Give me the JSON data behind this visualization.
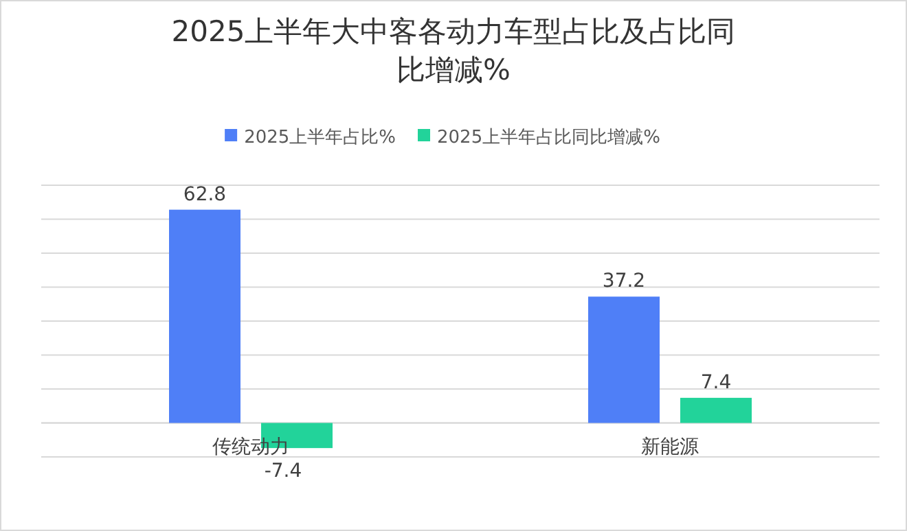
{
  "chart_data": {
    "type": "bar",
    "title": "2025上半年大中客各动力车型占比及占比同比增减%",
    "categories": [
      "传统动力",
      "新能源"
    ],
    "series": [
      {
        "name": "2025上半年占比%",
        "color": "#4f7ff7",
        "values": [
          62.8,
          37.2
        ]
      },
      {
        "name": "2025上半年占比同比增减%",
        "color": "#22d39a",
        "values": [
          -7.4,
          7.4
        ]
      }
    ],
    "ylim": [
      -10,
      70
    ],
    "yticks": [
      {
        "value": -10,
        "label": null
      },
      {
        "value": 0,
        "label": null
      },
      {
        "value": 10,
        "label": null
      },
      {
        "value": 20,
        "label": null
      },
      {
        "value": 30,
        "label": null
      },
      {
        "value": 40,
        "label": null
      },
      {
        "value": 50,
        "label": null
      },
      {
        "value": 60,
        "label": null
      },
      {
        "value": 70,
        "label": null
      }
    ],
    "tick_labels": "x",
    "grid": "y",
    "legend": "top",
    "data_labels": true
  }
}
